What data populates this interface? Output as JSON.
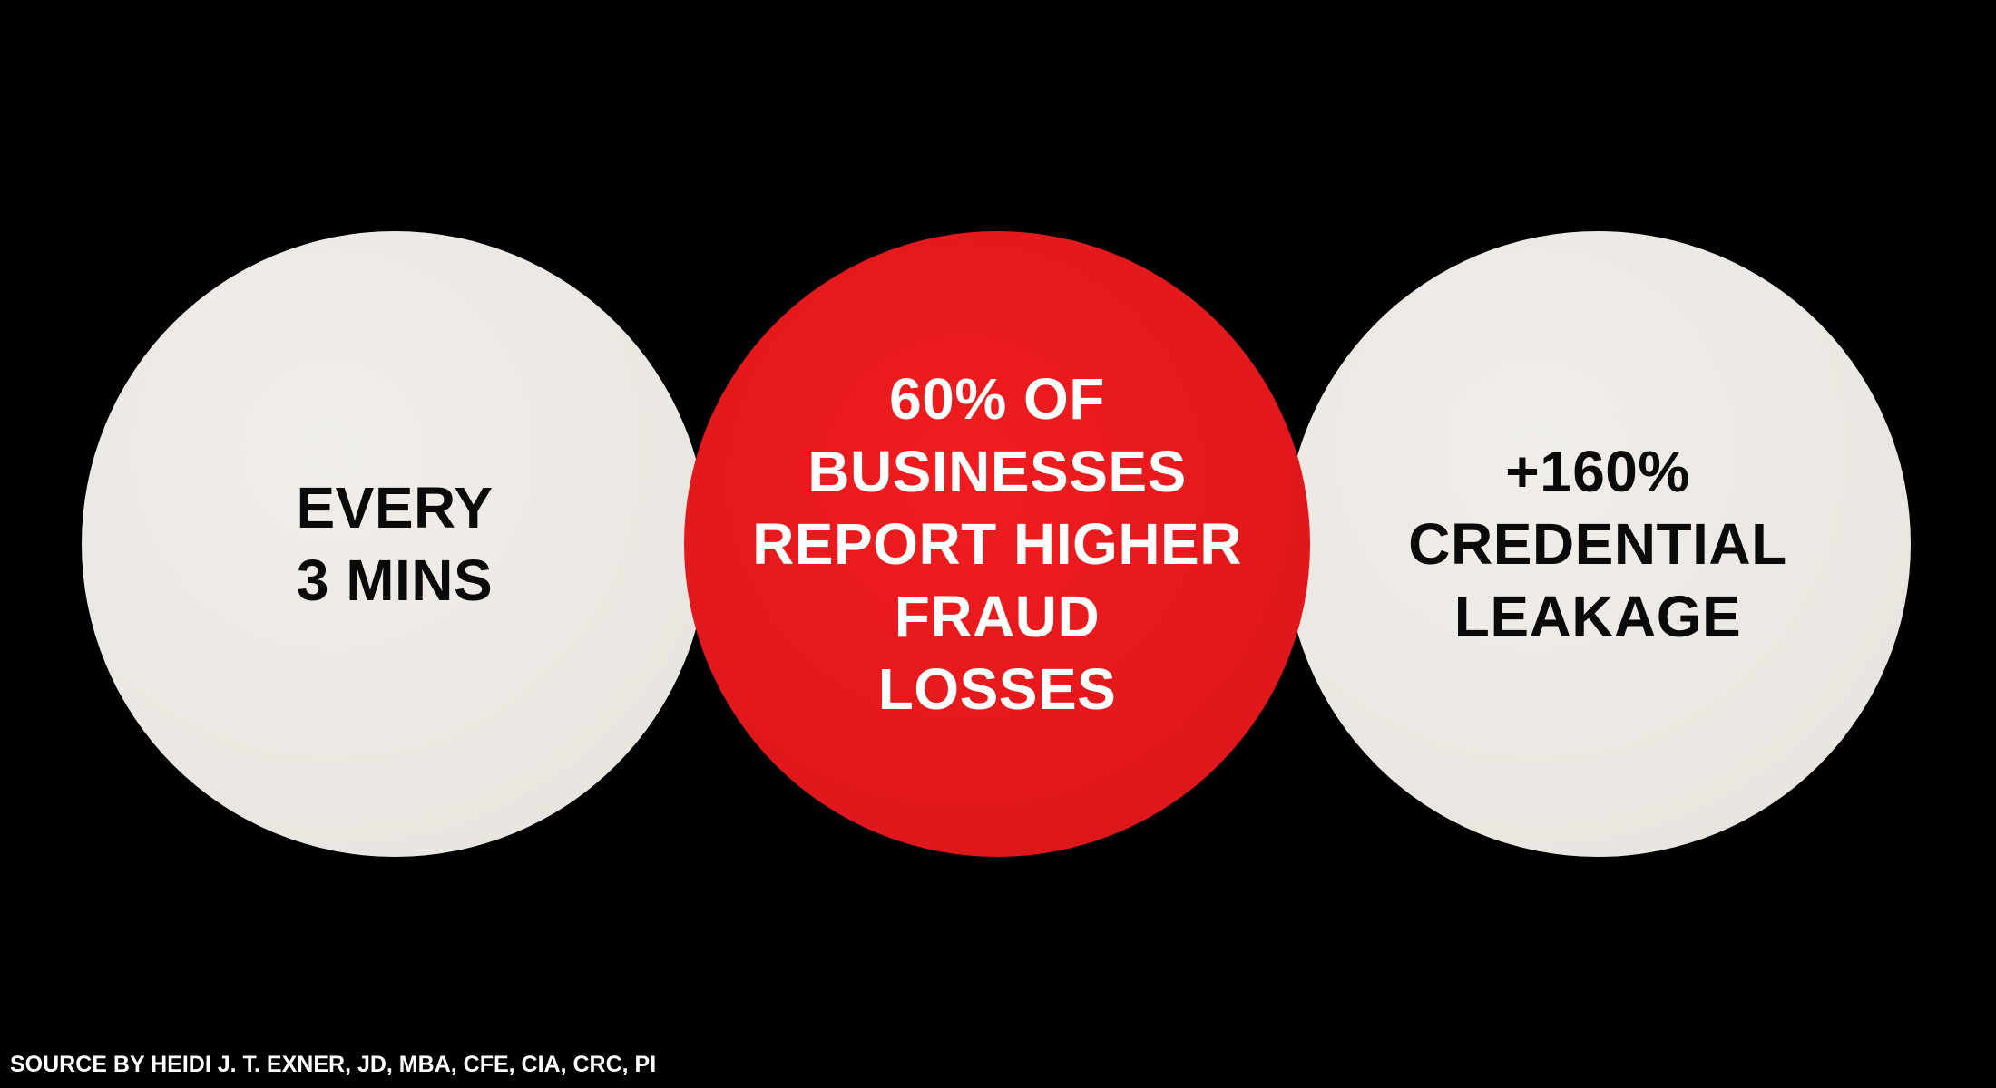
{
  "circles": [
    {
      "lines": [
        "EVERY",
        "3 MINS"
      ],
      "color": "#ebe7e2"
    },
    {
      "lines": [
        "60% OF",
        "BUSINESSES",
        "REPORT HIGHER",
        "FRAUD",
        "LOSSES"
      ],
      "color": "#e0181b"
    },
    {
      "lines": [
        "+160%",
        "CREDENTIAL",
        "LEAKAGE"
      ],
      "color": "#ebe7e2"
    }
  ],
  "source": "SOURCE BY HEIDI J. T. EXNER, JD, MBA, CFE, CIA, CRC, PI"
}
